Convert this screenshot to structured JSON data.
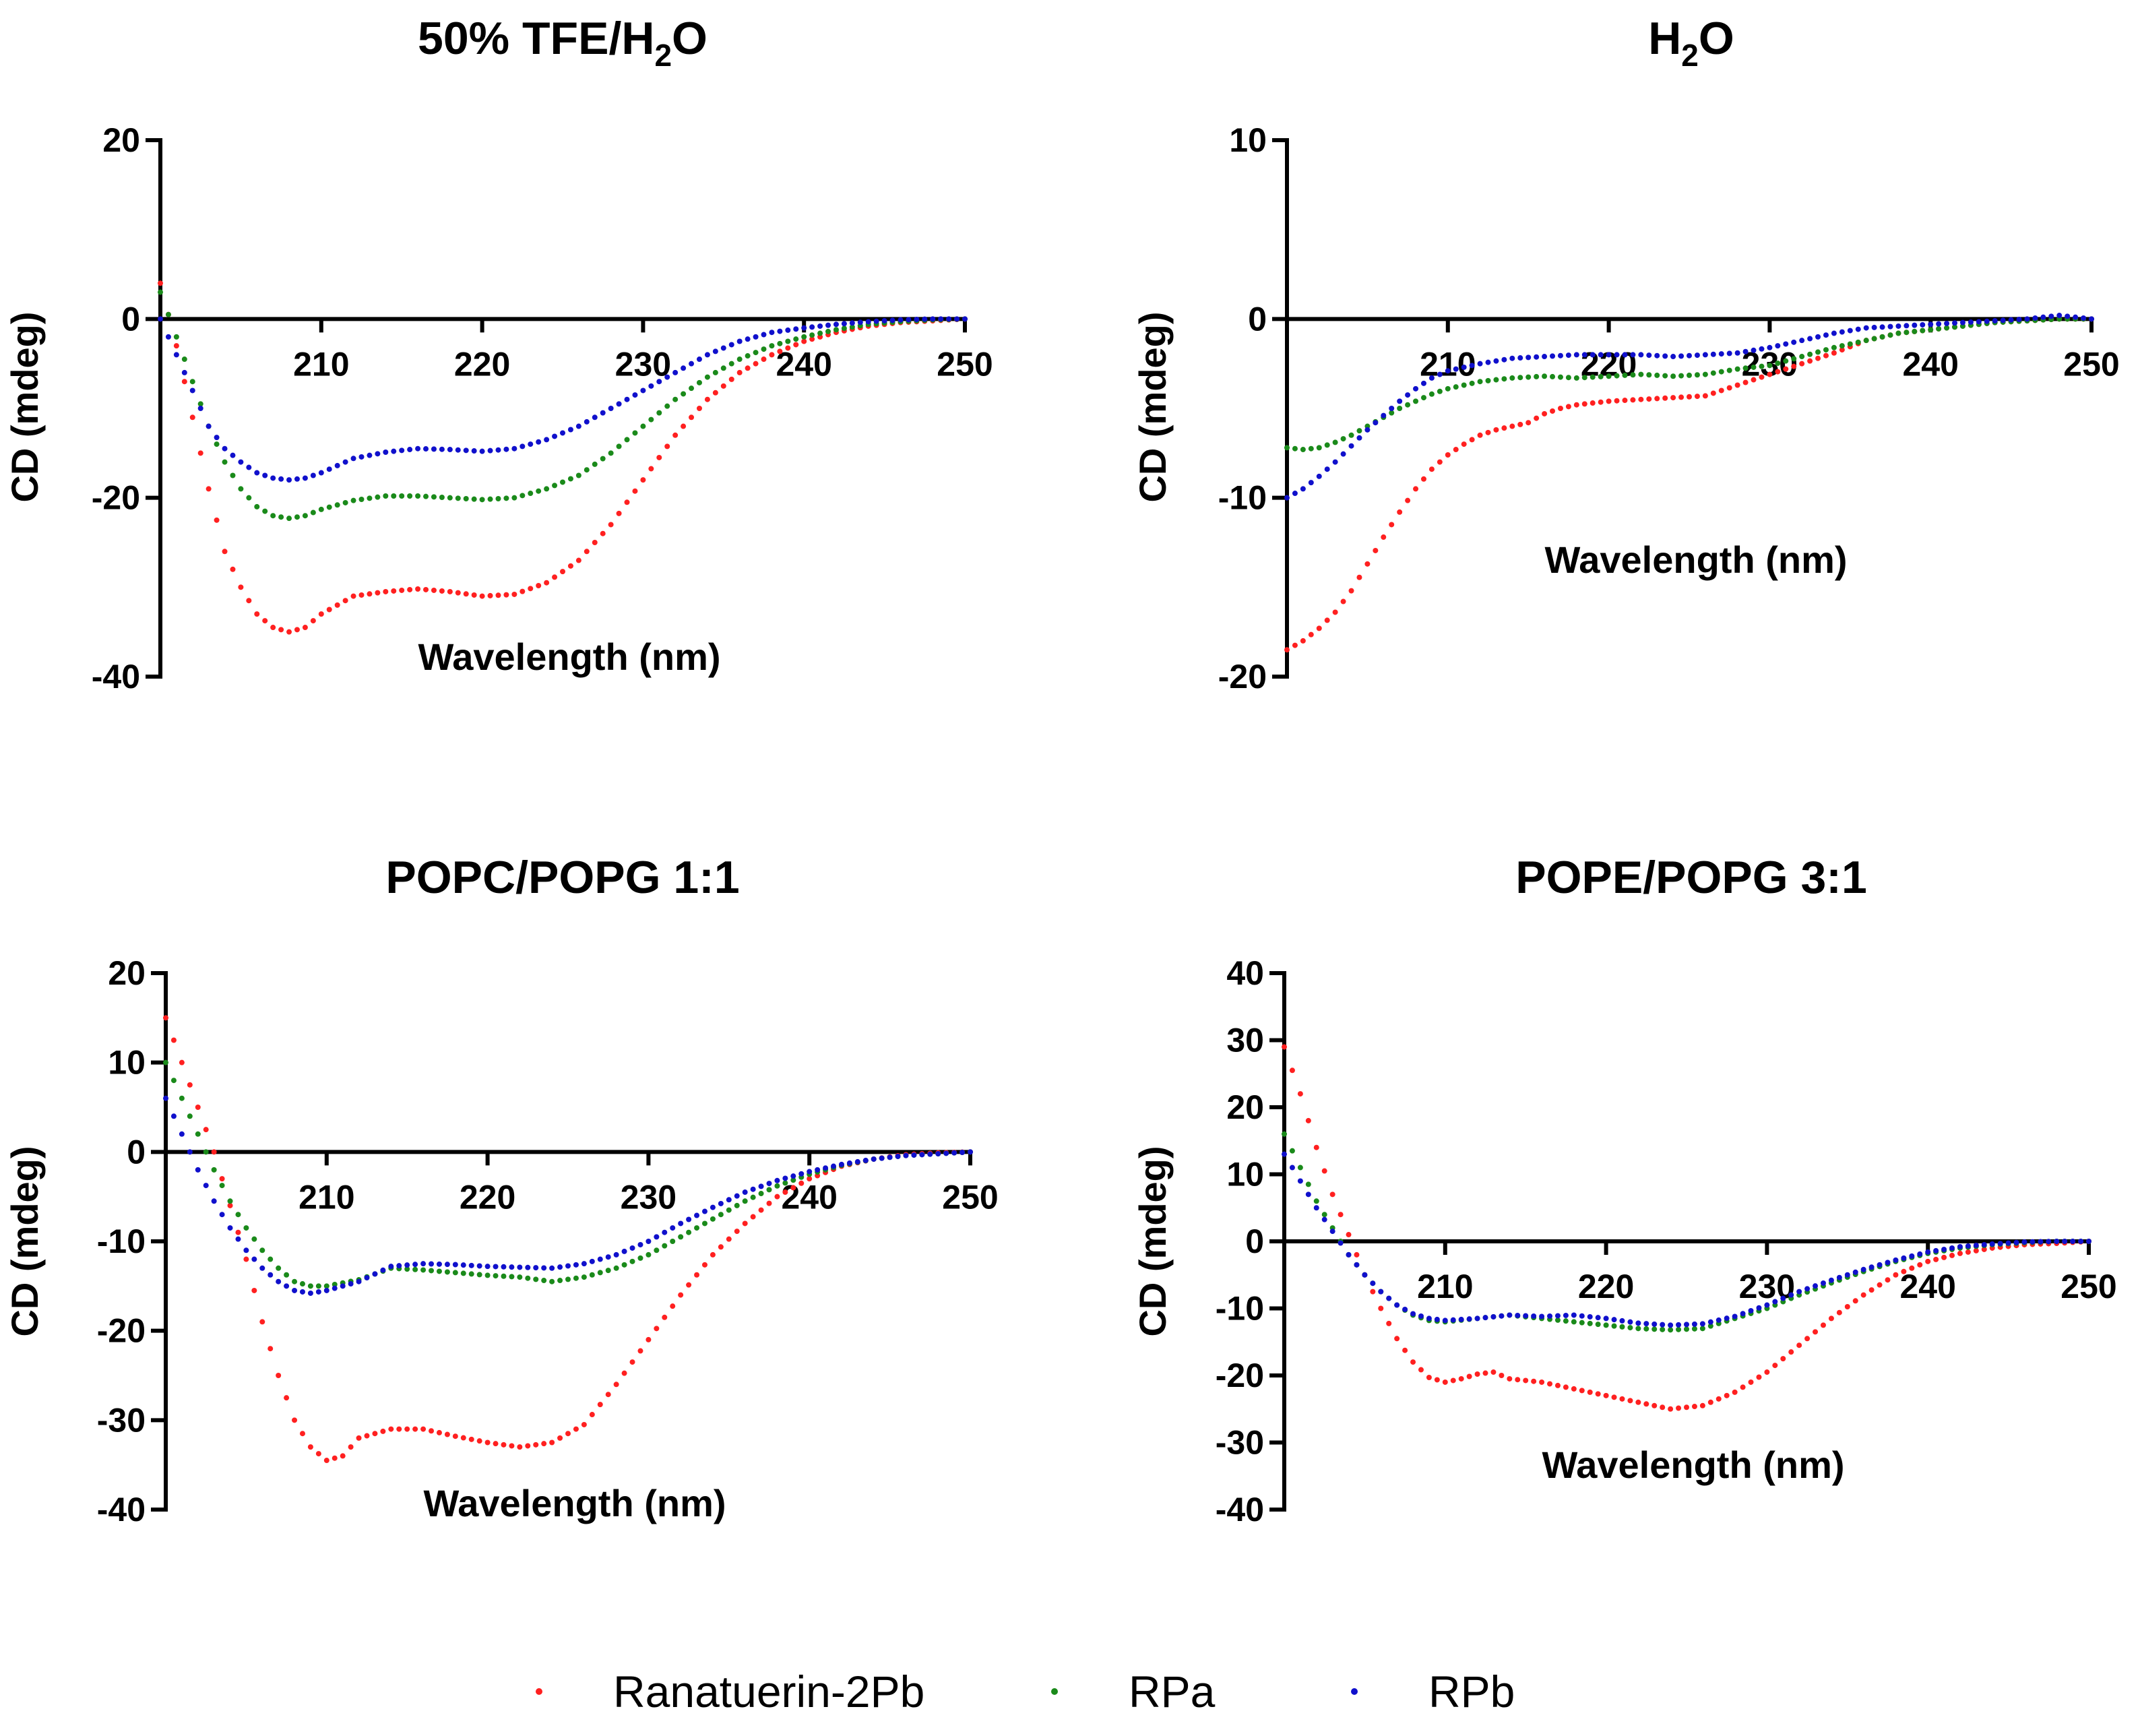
{
  "legend": [
    {
      "name": "Ranatuerin-2Pb",
      "color": "#ff2020"
    },
    {
      "name": "RPa",
      "color": "#1a8a1a"
    },
    {
      "name": "RPb",
      "color": "#1010cc"
    }
  ],
  "chart_data": [
    {
      "type": "scatter",
      "title": "50% TFE/H2O",
      "title_main": "50% TFE/H",
      "title_sub": "2",
      "title_tail": "O",
      "xlabel": "Wavelength (nm)",
      "ylabel": "CD (mdeg)",
      "xlim": [
        200,
        250
      ],
      "ylim": [
        -40,
        20
      ],
      "xticks": [
        210,
        220,
        230,
        240,
        250
      ],
      "yticks": [
        20,
        0,
        -20,
        -40
      ],
      "grid": false,
      "series": [
        {
          "name": "Ranatuerin-2Pb",
          "x": [
            200,
            201,
            202,
            203,
            204,
            205,
            206,
            207,
            208,
            209,
            210,
            212,
            214,
            216,
            218,
            220,
            222,
            224,
            226,
            228,
            230,
            232,
            234,
            236,
            238,
            240,
            242,
            244,
            246,
            248,
            250
          ],
          "y": [
            4,
            -3,
            -11,
            -19,
            -26,
            -30,
            -33,
            -34.5,
            -35,
            -34.5,
            -33,
            -31,
            -30.5,
            -30.2,
            -30.5,
            -31,
            -30.8,
            -29.5,
            -27,
            -23,
            -18,
            -13,
            -9,
            -6,
            -4,
            -2.5,
            -1.5,
            -0.8,
            -0.4,
            -0.2,
            0
          ]
        },
        {
          "name": "RPa",
          "x": [
            200,
            201,
            202,
            203,
            204,
            205,
            206,
            207,
            208,
            209,
            210,
            212,
            214,
            216,
            218,
            220,
            222,
            224,
            226,
            228,
            230,
            232,
            234,
            236,
            238,
            240,
            242,
            244,
            246,
            248,
            250
          ],
          "y": [
            3,
            -2,
            -7,
            -12,
            -16,
            -19,
            -21,
            -22,
            -22.3,
            -22,
            -21.3,
            -20.3,
            -19.8,
            -19.8,
            -20,
            -20.2,
            -20,
            -19,
            -17.5,
            -15,
            -12,
            -9,
            -6.5,
            -4.5,
            -3,
            -2,
            -1.2,
            -0.6,
            -0.3,
            -0.1,
            0
          ]
        },
        {
          "name": "RPb",
          "x": [
            200,
            201,
            202,
            203,
            204,
            205,
            206,
            207,
            208,
            209,
            210,
            212,
            214,
            216,
            218,
            220,
            222,
            224,
            226,
            228,
            230,
            232,
            234,
            236,
            238,
            240,
            242,
            244,
            246,
            248,
            250
          ],
          "y": [
            0,
            -4,
            -8,
            -12,
            -14.5,
            -16,
            -17.2,
            -17.8,
            -18,
            -17.8,
            -17.2,
            -15.6,
            -14.9,
            -14.5,
            -14.6,
            -14.8,
            -14.5,
            -13.5,
            -12,
            -10,
            -8,
            -6,
            -4,
            -2.5,
            -1.5,
            -1,
            -0.6,
            -0.3,
            -0.1,
            0,
            0
          ]
        }
      ]
    },
    {
      "type": "scatter",
      "title": "H2O",
      "title_main": "H",
      "title_sub": "2",
      "title_tail": "O",
      "xlabel": "Wavelength (nm)",
      "ylabel": "CD (mdeg)",
      "xlim": [
        200,
        250
      ],
      "ylim": [
        -20,
        10
      ],
      "xticks": [
        210,
        220,
        230,
        240,
        250
      ],
      "yticks": [
        10,
        0,
        -10,
        -20
      ],
      "grid": false,
      "series": [
        {
          "name": "Ranatuerin-2Pb",
          "x": [
            200,
            201,
            202,
            203,
            204,
            205,
            206,
            207,
            208,
            209,
            210,
            211,
            212,
            213,
            214,
            215,
            216,
            217,
            218,
            219,
            220,
            222,
            224,
            226,
            228,
            230,
            232,
            234,
            236,
            238,
            240,
            242,
            244,
            246,
            248,
            250
          ],
          "y": [
            -18.5,
            -18,
            -17.3,
            -16.4,
            -15.2,
            -13.7,
            -12.2,
            -10.8,
            -9.5,
            -8.4,
            -7.6,
            -7,
            -6.5,
            -6.2,
            -6,
            -5.8,
            -5.3,
            -5,
            -4.8,
            -4.7,
            -4.6,
            -4.5,
            -4.4,
            -4.3,
            -3.7,
            -3.1,
            -2.5,
            -1.9,
            -1.2,
            -0.8,
            -0.6,
            -0.4,
            -0.2,
            -0.1,
            0,
            0
          ]
        },
        {
          "name": "RPa",
          "x": [
            200,
            201,
            202,
            203,
            204,
            205,
            206,
            207,
            208,
            209,
            210,
            212,
            214,
            216,
            218,
            220,
            222,
            224,
            226,
            228,
            230,
            232,
            234,
            236,
            238,
            240,
            242,
            244,
            246,
            248,
            250
          ],
          "y": [
            -7.2,
            -7.3,
            -7.2,
            -6.9,
            -6.5,
            -6,
            -5.5,
            -5,
            -4.6,
            -4.2,
            -3.9,
            -3.5,
            -3.3,
            -3.2,
            -3.3,
            -3.2,
            -3.1,
            -3.2,
            -3.1,
            -2.8,
            -2.6,
            -2.1,
            -1.6,
            -1.2,
            -0.8,
            -0.6,
            -0.4,
            -0.2,
            -0.1,
            0,
            0
          ]
        },
        {
          "name": "RPb",
          "x": [
            200,
            201,
            202,
            203,
            204,
            205,
            206,
            207,
            208,
            209,
            210,
            212,
            214,
            216,
            218,
            220,
            222,
            224,
            226,
            228,
            230,
            232,
            234,
            236,
            238,
            240,
            242,
            244,
            246,
            248,
            250
          ],
          "y": [
            -10,
            -9.5,
            -8.8,
            -8,
            -7.1,
            -6.2,
            -5.4,
            -4.6,
            -3.9,
            -3.3,
            -2.9,
            -2.5,
            -2.2,
            -2.1,
            -2,
            -2,
            -2,
            -2.1,
            -2,
            -1.9,
            -1.6,
            -1.2,
            -0.8,
            -0.5,
            -0.4,
            -0.3,
            -0.2,
            -0.1,
            0,
            0.2,
            0
          ]
        }
      ]
    },
    {
      "type": "scatter",
      "title": "POPC/POPG 1:1",
      "title_main": "POPC/POPG 1:1",
      "title_sub": "",
      "title_tail": "",
      "xlabel": "Wavelength (nm)",
      "ylabel": "CD (mdeg)",
      "xlim": [
        200,
        250
      ],
      "ylim": [
        -40,
        20
      ],
      "xticks": [
        210,
        220,
        230,
        240,
        250
      ],
      "yticks": [
        20,
        10,
        0,
        -10,
        -20,
        -30,
        -40
      ],
      "grid": false,
      "series": [
        {
          "name": "Ranatuerin-2Pb",
          "x": [
            200,
            201,
            202,
            203,
            204,
            205,
            206,
            207,
            208,
            209,
            210,
            211,
            212,
            214,
            216,
            218,
            220,
            222,
            224,
            226,
            228,
            230,
            232,
            234,
            236,
            238,
            240,
            242,
            244,
            246,
            248,
            250
          ],
          "y": [
            15,
            10,
            5,
            0,
            -6,
            -12,
            -19,
            -25,
            -30,
            -33,
            -34.5,
            -34,
            -32,
            -31,
            -31,
            -31.8,
            -32.5,
            -33,
            -32.5,
            -30.5,
            -26,
            -21,
            -16,
            -11.5,
            -8,
            -5,
            -3,
            -1.6,
            -0.8,
            -0.3,
            -0.1,
            0
          ]
        },
        {
          "name": "RPa",
          "x": [
            200,
            201,
            202,
            203,
            204,
            205,
            206,
            207,
            208,
            209,
            210,
            212,
            214,
            216,
            218,
            220,
            222,
            224,
            226,
            228,
            230,
            232,
            234,
            236,
            238,
            240,
            242,
            244,
            246,
            248,
            250
          ],
          "y": [
            10,
            6,
            2,
            -2,
            -5.5,
            -8.5,
            -11,
            -13,
            -14.5,
            -15,
            -15,
            -14.3,
            -13,
            -13.2,
            -13.5,
            -13.8,
            -14,
            -14.5,
            -14,
            -13,
            -11.5,
            -9.5,
            -7.5,
            -5.5,
            -3.8,
            -2.5,
            -1.5,
            -0.8,
            -0.4,
            -0.2,
            0
          ]
        },
        {
          "name": "RPb",
          "x": [
            200,
            201,
            202,
            203,
            204,
            205,
            206,
            207,
            208,
            209,
            210,
            212,
            214,
            216,
            218,
            220,
            222,
            224,
            226,
            228,
            230,
            232,
            234,
            236,
            238,
            240,
            242,
            244,
            246,
            248,
            250
          ],
          "y": [
            6,
            2,
            -2,
            -5.5,
            -8.5,
            -11,
            -13,
            -14.5,
            -15.5,
            -15.8,
            -15.5,
            -14.5,
            -12.8,
            -12.5,
            -12.6,
            -12.8,
            -12.9,
            -13,
            -12.5,
            -11.5,
            -10,
            -8,
            -6.2,
            -4.5,
            -3.2,
            -2.2,
            -1.4,
            -0.8,
            -0.4,
            -0.2,
            0
          ]
        }
      ]
    },
    {
      "type": "scatter",
      "title": "POPE/POPG 3:1",
      "title_main": "POPE/POPG 3:1",
      "title_sub": "",
      "title_tail": "",
      "xlabel": "Wavelength (nm)",
      "ylabel": "CD (mdeg)",
      "xlim": [
        200,
        250
      ],
      "ylim": [
        -40,
        40
      ],
      "xticks": [
        210,
        220,
        230,
        240,
        250
      ],
      "yticks": [
        40,
        30,
        20,
        10,
        0,
        -10,
        -20,
        -30,
        -40
      ],
      "grid": false,
      "series": [
        {
          "name": "Ranatuerin-2Pb",
          "x": [
            200,
            201,
            202,
            203,
            204,
            205,
            206,
            207,
            208,
            209,
            210,
            211,
            212,
            213,
            214,
            216,
            218,
            220,
            222,
            224,
            226,
            228,
            230,
            232,
            234,
            236,
            238,
            240,
            242,
            244,
            246,
            248,
            250
          ],
          "y": [
            29,
            22,
            14,
            7,
            1,
            -5,
            -10,
            -14.5,
            -18,
            -20.3,
            -21,
            -20.5,
            -19.8,
            -19.5,
            -20.5,
            -21,
            -22,
            -23,
            -24,
            -25,
            -24.5,
            -22.5,
            -19.5,
            -15.5,
            -11.5,
            -8,
            -5,
            -3,
            -1.8,
            -1,
            -0.5,
            -0.3,
            0
          ]
        },
        {
          "name": "RPa",
          "x": [
            200,
            201,
            202,
            203,
            204,
            205,
            206,
            207,
            208,
            209,
            210,
            212,
            214,
            216,
            218,
            220,
            222,
            224,
            226,
            228,
            230,
            232,
            234,
            236,
            238,
            240,
            242,
            244,
            246,
            248,
            250
          ],
          "y": [
            16,
            11,
            6,
            2,
            -2,
            -5,
            -7.5,
            -9.5,
            -11,
            -11.8,
            -12,
            -11.5,
            -11,
            -11.5,
            -12,
            -12.5,
            -13,
            -13.2,
            -13,
            -11.5,
            -10,
            -8,
            -6.2,
            -4.5,
            -3,
            -1.8,
            -1,
            -0.5,
            -0.2,
            0,
            0
          ]
        },
        {
          "name": "RPb",
          "x": [
            200,
            201,
            202,
            203,
            204,
            205,
            206,
            207,
            208,
            209,
            210,
            212,
            214,
            216,
            218,
            220,
            222,
            224,
            226,
            228,
            230,
            232,
            234,
            236,
            238,
            240,
            242,
            244,
            246,
            248,
            250
          ],
          "y": [
            13,
            9,
            5,
            1.5,
            -2,
            -5,
            -7.5,
            -9.5,
            -10.8,
            -11.5,
            -11.8,
            -11.5,
            -11,
            -11.2,
            -11,
            -11.5,
            -12.2,
            -12.5,
            -12.3,
            -11.2,
            -9.5,
            -7.5,
            -5.8,
            -4.2,
            -2.8,
            -1.6,
            -0.8,
            -0.4,
            -0.1,
            0,
            0
          ]
        }
      ]
    }
  ]
}
